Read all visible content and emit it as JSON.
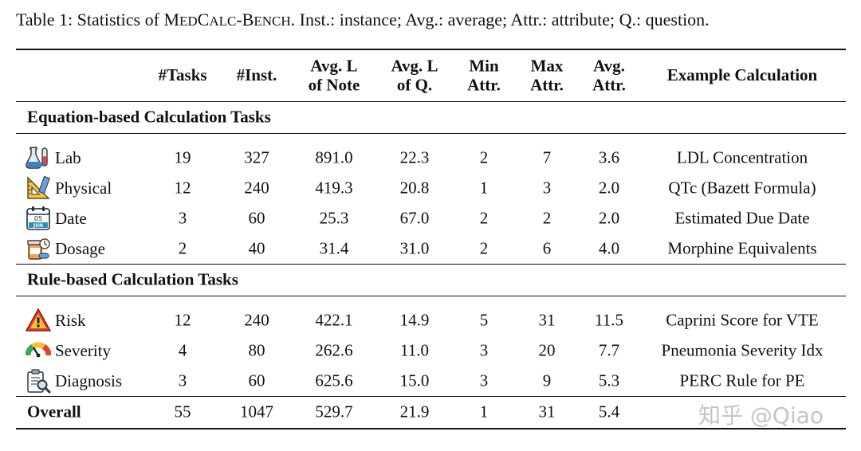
{
  "caption": {
    "prefix": "Table 1: Statistics of ",
    "bench_parts": [
      "M",
      "ED",
      "C",
      "ALC",
      "-B",
      "ENCH"
    ],
    "suffix": ". Inst.: instance; Avg.: average; Attr.: attribute; Q.: question."
  },
  "headers": [
    "#Tasks",
    "#Inst.",
    "Avg. L\nof Note",
    "Avg. L\nof Q.",
    "Min\nAttr.",
    "Max\nAttr.",
    "Avg.\nAttr.",
    "Example Calculation"
  ],
  "sections": [
    {
      "title": "Equation-based Calculation Tasks",
      "rows": [
        {
          "name": "Lab",
          "icon": "lab-flask-icon",
          "tasks": "19",
          "inst": "327",
          "avg_note": "891.0",
          "avg_q": "22.3",
          "min_attr": "2",
          "max_attr": "7",
          "avg_attr": "3.6",
          "example": "LDL Concentration"
        },
        {
          "name": "Physical",
          "icon": "ruler-triangle-icon",
          "tasks": "12",
          "inst": "240",
          "avg_note": "419.3",
          "avg_q": "20.8",
          "min_attr": "1",
          "max_attr": "3",
          "avg_attr": "2.0",
          "example": "QTc (Bazett Formula)"
        },
        {
          "name": "Date",
          "icon": "calendar-icon",
          "tasks": "3",
          "inst": "60",
          "avg_note": "25.3",
          "avg_q": "67.0",
          "min_attr": "2",
          "max_attr": "2",
          "avg_attr": "2.0",
          "example": "Estimated Due Date"
        },
        {
          "name": "Dosage",
          "icon": "pill-bottle-icon",
          "tasks": "2",
          "inst": "40",
          "avg_note": "31.4",
          "avg_q": "31.0",
          "min_attr": "2",
          "max_attr": "6",
          "avg_attr": "4.0",
          "example": "Morphine Equivalents"
        }
      ]
    },
    {
      "title": "Rule-based Calculation Tasks",
      "rows": [
        {
          "name": "Risk",
          "icon": "warning-triangle-icon",
          "tasks": "12",
          "inst": "240",
          "avg_note": "422.1",
          "avg_q": "14.9",
          "min_attr": "5",
          "max_attr": "31",
          "avg_attr": "11.5",
          "example": "Caprini Score for VTE"
        },
        {
          "name": "Severity",
          "icon": "gauge-icon",
          "tasks": "4",
          "inst": "80",
          "avg_note": "262.6",
          "avg_q": "11.0",
          "min_attr": "3",
          "max_attr": "20",
          "avg_attr": "7.7",
          "example": "Pneumonia Severity Idx"
        },
        {
          "name": "Diagnosis",
          "icon": "clipboard-magnifier-icon",
          "tasks": "3",
          "inst": "60",
          "avg_note": "625.6",
          "avg_q": "15.0",
          "min_attr": "3",
          "max_attr": "9",
          "avg_attr": "5.3",
          "example": "PERC Rule for PE"
        }
      ]
    }
  ],
  "overall": {
    "name": "Overall",
    "tasks": "55",
    "inst": "1047",
    "avg_note": "529.7",
    "avg_q": "21.9",
    "min_attr": "1",
    "max_attr": "31",
    "avg_attr": "5.4"
  },
  "watermark": "知乎 @Qiao"
}
